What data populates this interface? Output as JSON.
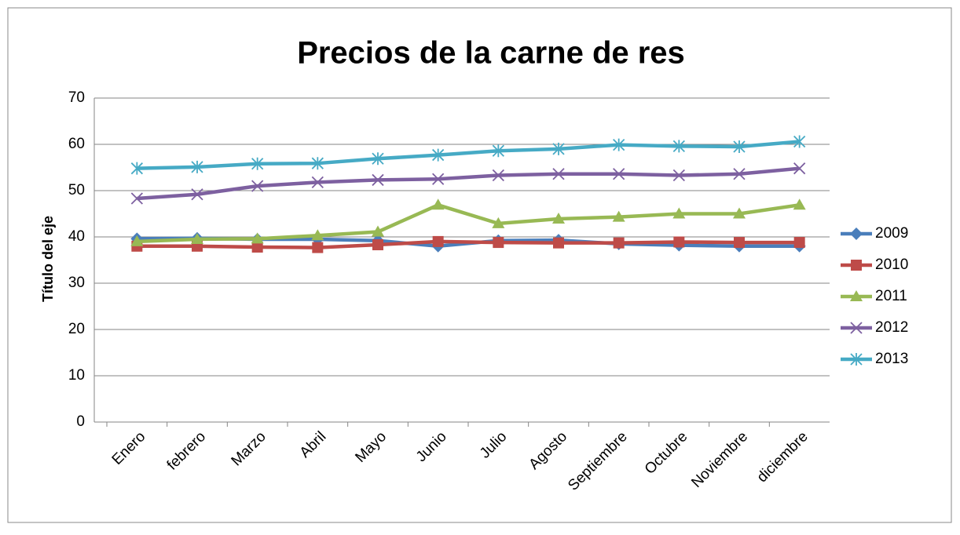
{
  "chart_data": {
    "type": "line",
    "title": "Precios de la carne de res",
    "y_label": "Título del eje",
    "categories": [
      "Enero",
      "febrero",
      "Marzo",
      "Abril",
      "Mayo",
      "Junio",
      "Julio",
      "Agosto",
      "Septiembre",
      "Octubre",
      "Noviembre",
      "diciembre"
    ],
    "series": [
      {
        "name": "2009",
        "color": "#4a7ebb",
        "marker": "diamond",
        "values": [
          39.6,
          39.7,
          39.5,
          39.5,
          39.2,
          38,
          39.2,
          39.3,
          38.5,
          38.2,
          38,
          38
        ]
      },
      {
        "name": "2010",
        "color": "#be4b48",
        "marker": "square",
        "values": [
          38,
          38,
          37.8,
          37.7,
          38.3,
          39,
          38.8,
          38.7,
          38.7,
          38.9,
          38.8,
          38.8
        ]
      },
      {
        "name": "2011",
        "color": "#98b954",
        "marker": "triangle",
        "values": [
          39,
          39.5,
          39.6,
          40.3,
          41.1,
          46.9,
          42.9,
          43.9,
          44.3,
          45,
          45,
          46.9
        ]
      },
      {
        "name": "2012",
        "color": "#7d60a0",
        "marker": "x",
        "values": [
          48.3,
          49.2,
          51,
          51.8,
          52.3,
          52.5,
          53.3,
          53.6,
          53.6,
          53.3,
          53.6,
          54.8
        ]
      },
      {
        "name": "2013",
        "color": "#46aac5",
        "marker": "star",
        "values": [
          54.8,
          55.1,
          55.8,
          55.9,
          56.9,
          57.7,
          58.6,
          59,
          59.9,
          59.6,
          59.5,
          60.6
        ]
      }
    ],
    "ylim": [
      0,
      70
    ],
    "yticks": [
      0,
      10,
      20,
      30,
      40,
      50,
      60,
      70
    ],
    "grid": true,
    "legend": "right"
  }
}
